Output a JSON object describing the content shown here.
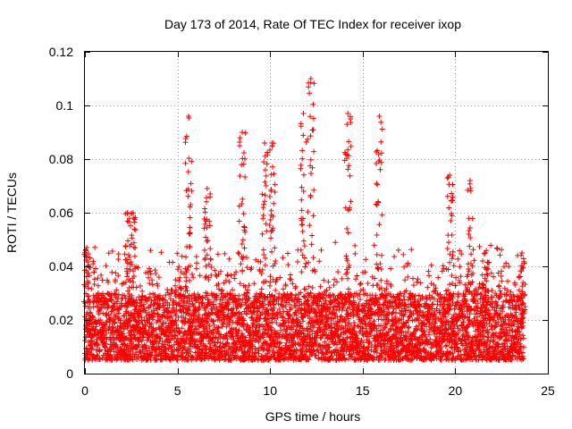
{
  "chart_data": {
    "type": "scatter",
    "title": "Day 173 of 2014, Rate Of TEC Index for receiver ixop",
    "xlabel": "GPS time / hours",
    "ylabel": "ROTI / TECUs",
    "xlim": [
      0,
      25
    ],
    "ylim": [
      0,
      0.12
    ],
    "xticks": [
      0,
      5,
      10,
      15,
      20,
      25
    ],
    "xtick_labels": [
      "0",
      "5",
      "10",
      "15",
      "20",
      "25"
    ],
    "yticks": [
      0,
      0.02,
      0.04,
      0.06,
      0.08,
      0.1,
      0.12
    ],
    "ytick_labels": [
      "0",
      "0.02",
      "0.04",
      "0.06",
      "0.08",
      "0.1",
      "0.12"
    ],
    "grid": true,
    "marker": "+",
    "color": "#ff0000",
    "series": [
      {
        "name": "ROTI",
        "x_range": [
          0,
          23.7
        ],
        "typical_band": [
          0.005,
          0.03
        ],
        "notable_peaks": [
          {
            "x": 0.1,
            "y": 0.047
          },
          {
            "x": 2.3,
            "y": 0.06
          },
          {
            "x": 2.6,
            "y": 0.06
          },
          {
            "x": 5.6,
            "y": 0.096
          },
          {
            "x": 6.6,
            "y": 0.069
          },
          {
            "x": 8.5,
            "y": 0.09
          },
          {
            "x": 9.7,
            "y": 0.086
          },
          {
            "x": 10.1,
            "y": 0.086
          },
          {
            "x": 11.8,
            "y": 0.097
          },
          {
            "x": 12.2,
            "y": 0.11
          },
          {
            "x": 14.2,
            "y": 0.097
          },
          {
            "x": 15.9,
            "y": 0.096
          },
          {
            "x": 19.7,
            "y": 0.074
          },
          {
            "x": 20.8,
            "y": 0.072
          },
          {
            "x": 21.6,
            "y": 0.045
          },
          {
            "x": 23.6,
            "y": 0.045
          }
        ]
      }
    ]
  }
}
